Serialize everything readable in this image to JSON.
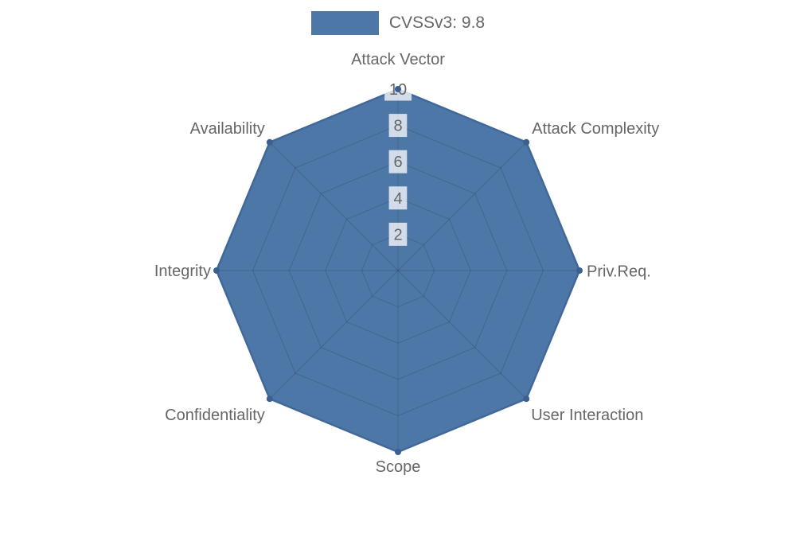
{
  "page": {
    "background": "#ffffff"
  },
  "legend": {
    "position": "top",
    "items": [
      {
        "label": "CVSSv3: 9.8",
        "swatch_color": "#4d77a6"
      }
    ]
  },
  "chart_data": {
    "type": "radar",
    "title": "",
    "categories": [
      "Attack Vector",
      "Attack Complexity",
      "Priv.Req.",
      "User Interaction",
      "Scope",
      "Confidentiality",
      "Integrity",
      "Availability"
    ],
    "series": [
      {
        "name": "CVSSv3: 9.8",
        "values": [
          10,
          10,
          10,
          10,
          10,
          10,
          10,
          10
        ]
      }
    ],
    "scale": {
      "min": 0,
      "max": 10,
      "ticks": [
        2,
        4,
        6,
        8,
        10
      ],
      "tick_axis": "vertical-top"
    },
    "grid": true,
    "grid_shape": "polygon",
    "legend_position": "top",
    "colors": {
      "fill": "#4d77a6",
      "border": "#41689a",
      "point": "#3a6190",
      "grid_line": "rgba(0,0,0,0.14)",
      "label_text": "#666666",
      "tick_text": "#666666",
      "tick_backdrop": "rgba(255,255,255,0.75)"
    }
  }
}
